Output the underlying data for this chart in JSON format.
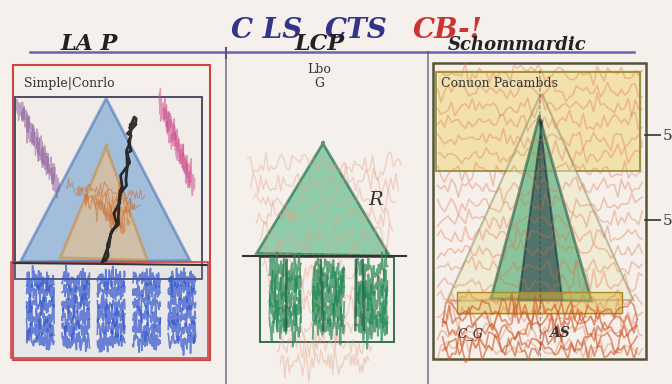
{
  "title_cls": "C LS",
  "title_cts": "CTS",
  "title_cb": "CB-!",
  "bg_color": "#f5f0ec",
  "panel1_title": "LA P",
  "panel1_subtitle": "Simple|Conrlo",
  "panel2_title": "LCP",
  "panel2_sub1": "Lbo",
  "panel2_sub2": "G",
  "panel2_label": "R",
  "panel3_title": "Schommardic",
  "panel3_subtitle": "Conuon Pacambds",
  "panel3_label3": "C_G",
  "panel3_label4": "AS"
}
